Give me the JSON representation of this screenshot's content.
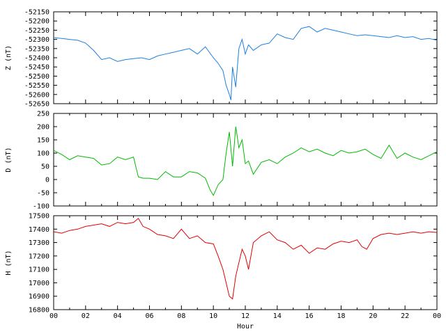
{
  "chart_data": [
    {
      "type": "line",
      "ylabel": "Z (nT)",
      "xlim": [
        0,
        24
      ],
      "ylim": [
        -52650,
        -52150
      ],
      "yticks": [
        -52150,
        -52200,
        -52250,
        -52300,
        -52350,
        -52400,
        -52450,
        -52500,
        -52550,
        -52600,
        -52650
      ],
      "grid": false,
      "color": "#1f7fdf",
      "series": [
        {
          "x": [
            0,
            0.5,
            1,
            1.5,
            2,
            2.5,
            3,
            3.5,
            4,
            4.5,
            5,
            5.5,
            6,
            6.5,
            7,
            7.5,
            8,
            8.5,
            9,
            9.5,
            10,
            10.3,
            10.6,
            10.8,
            11,
            11.1,
            11.2,
            11.4,
            11.6,
            11.8,
            12,
            12.2,
            12.5,
            13,
            13.5,
            14,
            14.5,
            15,
            15.5,
            16,
            16.5,
            17,
            17.5,
            18,
            18.5,
            19,
            19.5,
            20,
            20.5,
            21,
            21.5,
            22,
            22.5,
            23,
            23.5,
            24
          ],
          "y": [
            -52290,
            -52295,
            -52300,
            -52305,
            -52320,
            -52360,
            -52410,
            -52400,
            -52420,
            -52410,
            -52405,
            -52400,
            -52410,
            -52390,
            -52380,
            -52370,
            -52360,
            -52350,
            -52380,
            -52340,
            -52400,
            -52430,
            -52470,
            -52550,
            -52600,
            -52630,
            -52450,
            -52560,
            -52350,
            -52300,
            -52380,
            -52330,
            -52360,
            -52330,
            -52320,
            -52270,
            -52290,
            -52300,
            -52240,
            -52230,
            -52260,
            -52240,
            -52250,
            -52260,
            -52270,
            -52280,
            -52275,
            -52280,
            -52285,
            -52290,
            -52280,
            -52290,
            -52285,
            -52300,
            -52295,
            -52305
          ]
        }
      ]
    },
    {
      "type": "line",
      "ylabel": "D (nT)",
      "xlim": [
        0,
        24
      ],
      "ylim": [
        -100,
        250
      ],
      "yticks": [
        250,
        200,
        150,
        100,
        50,
        0,
        -50,
        -100
      ],
      "grid": false,
      "color": "#00bb00",
      "series": [
        {
          "x": [
            0,
            0.5,
            1,
            1.5,
            2,
            2.5,
            3,
            3.5,
            4,
            4.5,
            5,
            5.3,
            5.6,
            6,
            6.5,
            7,
            7.5,
            8,
            8.5,
            9,
            9.5,
            9.8,
            10,
            10.3,
            10.6,
            10.8,
            11,
            11.2,
            11.4,
            11.6,
            11.8,
            12,
            12.2,
            12.5,
            13,
            13.5,
            14,
            14.5,
            15,
            15.5,
            16,
            16.5,
            17,
            17.5,
            18,
            18.5,
            19,
            19.5,
            20,
            20.5,
            21,
            21.5,
            22,
            22.5,
            23,
            23.5,
            24
          ],
          "y": [
            110,
            95,
            75,
            90,
            85,
            80,
            55,
            60,
            85,
            75,
            85,
            10,
            5,
            5,
            0,
            30,
            10,
            10,
            30,
            25,
            5,
            -40,
            -60,
            -20,
            0,
            100,
            180,
            50,
            200,
            120,
            150,
            60,
            70,
            20,
            65,
            75,
            60,
            85,
            100,
            120,
            105,
            115,
            100,
            90,
            110,
            100,
            105,
            115,
            95,
            80,
            130,
            80,
            100,
            85,
            75,
            90,
            105
          ]
        }
      ]
    },
    {
      "type": "line",
      "ylabel": "H (nT)",
      "xlabel": "Hour",
      "xlim": [
        0,
        24
      ],
      "ylim": [
        16800,
        17500
      ],
      "yticks": [
        17500,
        17400,
        17300,
        17200,
        17100,
        17000,
        16900,
        16800
      ],
      "xticks": [
        "00",
        "02",
        "04",
        "06",
        "08",
        "10",
        "12",
        "14",
        "16",
        "18",
        "20",
        "22",
        "00"
      ],
      "grid": false,
      "color": "#e00000",
      "series": [
        {
          "x": [
            0,
            0.5,
            1,
            1.5,
            2,
            2.5,
            3,
            3.5,
            4,
            4.5,
            5,
            5.3,
            5.6,
            6,
            6.5,
            7,
            7.5,
            8,
            8.5,
            9,
            9.5,
            10,
            10.3,
            10.6,
            10.8,
            11,
            11.2,
            11.4,
            11.6,
            11.8,
            12,
            12.2,
            12.5,
            13,
            13.5,
            14,
            14.5,
            15,
            15.5,
            16,
            16.5,
            17,
            17.5,
            18,
            18.5,
            19,
            19.3,
            19.6,
            20,
            20.5,
            21,
            21.5,
            22,
            22.5,
            23,
            23.5,
            24
          ],
          "y": [
            17380,
            17370,
            17390,
            17400,
            17420,
            17430,
            17440,
            17420,
            17450,
            17440,
            17450,
            17480,
            17420,
            17400,
            17360,
            17350,
            17330,
            17400,
            17330,
            17350,
            17300,
            17290,
            17200,
            17100,
            17000,
            16900,
            16880,
            17050,
            17150,
            17250,
            17200,
            17100,
            17300,
            17350,
            17380,
            17320,
            17300,
            17250,
            17280,
            17220,
            17260,
            17250,
            17290,
            17310,
            17300,
            17320,
            17270,
            17250,
            17330,
            17360,
            17370,
            17360,
            17370,
            17380,
            17370,
            17380,
            17375
          ]
        }
      ]
    }
  ]
}
